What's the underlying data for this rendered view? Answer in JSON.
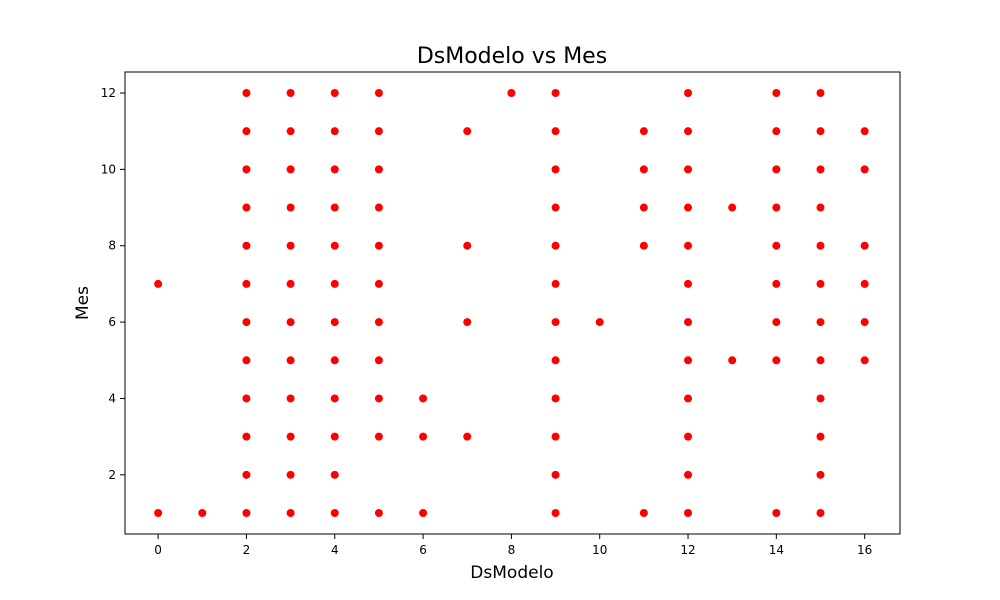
{
  "chart_data": {
    "type": "scatter",
    "title": "DsModelo vs Mes",
    "xlabel": "DsModelo",
    "ylabel": "Mes",
    "xlim": [
      -0.75,
      16.8
    ],
    "ylim": [
      0.45,
      12.55
    ],
    "xticks": [
      0,
      2,
      4,
      6,
      8,
      10,
      12,
      14,
      16
    ],
    "yticks": [
      2,
      4,
      6,
      8,
      10,
      12
    ],
    "grid": false,
    "marker_color": "#ff0000",
    "points": [
      [
        0,
        1
      ],
      [
        0,
        7
      ],
      [
        1,
        1
      ],
      [
        2,
        1
      ],
      [
        2,
        2
      ],
      [
        2,
        3
      ],
      [
        2,
        4
      ],
      [
        2,
        5
      ],
      [
        2,
        6
      ],
      [
        2,
        7
      ],
      [
        2,
        8
      ],
      [
        2,
        9
      ],
      [
        2,
        10
      ],
      [
        2,
        11
      ],
      [
        2,
        12
      ],
      [
        3,
        1
      ],
      [
        3,
        2
      ],
      [
        3,
        3
      ],
      [
        3,
        4
      ],
      [
        3,
        5
      ],
      [
        3,
        6
      ],
      [
        3,
        7
      ],
      [
        3,
        8
      ],
      [
        3,
        9
      ],
      [
        3,
        10
      ],
      [
        3,
        11
      ],
      [
        3,
        12
      ],
      [
        4,
        1
      ],
      [
        4,
        2
      ],
      [
        4,
        3
      ],
      [
        4,
        4
      ],
      [
        4,
        5
      ],
      [
        4,
        6
      ],
      [
        4,
        7
      ],
      [
        4,
        8
      ],
      [
        4,
        9
      ],
      [
        4,
        10
      ],
      [
        4,
        11
      ],
      [
        4,
        12
      ],
      [
        5,
        1
      ],
      [
        5,
        3
      ],
      [
        5,
        4
      ],
      [
        5,
        5
      ],
      [
        5,
        6
      ],
      [
        5,
        7
      ],
      [
        5,
        8
      ],
      [
        5,
        9
      ],
      [
        5,
        10
      ],
      [
        5,
        11
      ],
      [
        5,
        12
      ],
      [
        6,
        1
      ],
      [
        6,
        3
      ],
      [
        6,
        4
      ],
      [
        7,
        3
      ],
      [
        7,
        6
      ],
      [
        7,
        8
      ],
      [
        7,
        11
      ],
      [
        8,
        12
      ],
      [
        9,
        1
      ],
      [
        9,
        2
      ],
      [
        9,
        3
      ],
      [
        9,
        4
      ],
      [
        9,
        5
      ],
      [
        9,
        6
      ],
      [
        9,
        7
      ],
      [
        9,
        8
      ],
      [
        9,
        9
      ],
      [
        9,
        10
      ],
      [
        9,
        11
      ],
      [
        9,
        12
      ],
      [
        10,
        6
      ],
      [
        11,
        1
      ],
      [
        11,
        8
      ],
      [
        11,
        9
      ],
      [
        11,
        10
      ],
      [
        11,
        11
      ],
      [
        12,
        1
      ],
      [
        12,
        2
      ],
      [
        12,
        3
      ],
      [
        12,
        4
      ],
      [
        12,
        5
      ],
      [
        12,
        6
      ],
      [
        12,
        7
      ],
      [
        12,
        8
      ],
      [
        12,
        9
      ],
      [
        12,
        10
      ],
      [
        12,
        11
      ],
      [
        12,
        12
      ],
      [
        13,
        5
      ],
      [
        13,
        9
      ],
      [
        14,
        1
      ],
      [
        14,
        5
      ],
      [
        14,
        6
      ],
      [
        14,
        7
      ],
      [
        14,
        8
      ],
      [
        14,
        9
      ],
      [
        14,
        10
      ],
      [
        14,
        11
      ],
      [
        14,
        12
      ],
      [
        15,
        1
      ],
      [
        15,
        2
      ],
      [
        15,
        3
      ],
      [
        15,
        4
      ],
      [
        15,
        5
      ],
      [
        15,
        6
      ],
      [
        15,
        7
      ],
      [
        15,
        8
      ],
      [
        15,
        9
      ],
      [
        15,
        10
      ],
      [
        15,
        11
      ],
      [
        15,
        12
      ],
      [
        16,
        5
      ],
      [
        16,
        6
      ],
      [
        16,
        7
      ],
      [
        16,
        8
      ],
      [
        16,
        10
      ],
      [
        16,
        11
      ]
    ]
  }
}
